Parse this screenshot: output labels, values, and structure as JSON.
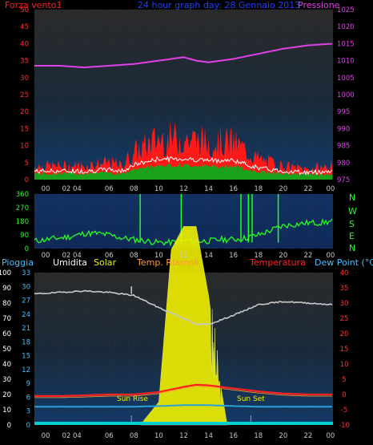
{
  "colors": {
    "wind_speed": "#ff1a1a",
    "wind_avg": "#ffffff",
    "wind_green": "#19a11c",
    "pressure": "#e040e8",
    "direction": "#22ff22",
    "humidity": "#c8c8c8",
    "solar": "#f0f000",
    "temp_internal": "#ff9933",
    "temperature": "#ff2020",
    "dewpoint": "#2aa0d8",
    "rain": "#00d0d0",
    "header_blue": "#1e40ff",
    "axis_cyan": "#40c0ff"
  },
  "header": {
    "left": "Forza vento1",
    "center": "24 hour graph day: 28 Gennaio 2013",
    "right": "Pressione"
  },
  "legend2": {
    "pioggia": "Pioggia",
    "umidita": "Umidita",
    "solar": "Solar",
    "temp_interna": "Temp. Riarnoli",
    "temperatura": "Temperatura",
    "dewpoint": "Dew Point (°C)"
  },
  "compass": [
    "N",
    "W",
    "S",
    "E",
    "N"
  ],
  "sun_labels": {
    "rise": "Sun Rise",
    "set": "Sun Set"
  },
  "chart_data": [
    {
      "type": "line",
      "title": "24 hour graph day: 28 Gennaio 2013",
      "x_ticks": [
        "00",
        "02",
        "04",
        "06",
        "08",
        "10",
        "12",
        "14",
        "16",
        "18",
        "20",
        "22",
        "00"
      ],
      "x_ticks_shown": [
        "00",
        "02 04",
        "06",
        "08",
        "10",
        "12",
        "14",
        "16",
        "18",
        "20",
        "22",
        "00"
      ],
      "y_left": {
        "label": "Forza vento1",
        "ticks": [
          0,
          5,
          10,
          15,
          20,
          25,
          30,
          35,
          40,
          45,
          50
        ],
        "range": [
          0,
          50
        ]
      },
      "y_right": {
        "label": "Pressione",
        "ticks": [
          975,
          980,
          985,
          990,
          995,
          1000,
          1005,
          1010,
          1015,
          1020,
          1025
        ],
        "range": [
          975,
          1025
        ]
      },
      "series": [
        {
          "name": "Forza vento1",
          "axis": "left",
          "x": [
            0,
            2,
            4,
            6,
            7,
            8,
            10,
            12,
            14,
            16,
            18,
            20,
            22,
            24
          ],
          "values": [
            4,
            4,
            4,
            5,
            4,
            8,
            12,
            12,
            11,
            11,
            6,
            4,
            3,
            4
          ]
        },
        {
          "name": "Pressione",
          "axis": "right",
          "x": [
            0,
            2,
            4,
            6,
            8,
            10,
            12,
            13,
            14,
            16,
            18,
            20,
            22,
            24
          ],
          "values": [
            1008.5,
            1008.5,
            1008,
            1008.5,
            1009,
            1010,
            1011,
            1010,
            1009.5,
            1010.5,
            1012,
            1013.5,
            1014.5,
            1015
          ]
        }
      ]
    },
    {
      "type": "line",
      "x_ticks": [
        "00",
        "02",
        "04",
        "06",
        "08",
        "10",
        "12",
        "14",
        "16",
        "18",
        "20",
        "22",
        "00"
      ],
      "y_left": {
        "ticks": [
          0,
          90,
          180,
          270,
          360
        ],
        "range": [
          0,
          360
        ]
      },
      "y_right_labels": [
        "N",
        "W",
        "S",
        "E",
        "N"
      ],
      "series": [
        {
          "name": "wind_direction",
          "x": [
            0,
            1,
            2,
            3,
            4,
            5,
            6,
            7,
            8,
            9,
            10,
            11,
            12,
            13,
            14,
            15,
            16,
            17,
            18,
            19,
            20,
            21,
            22,
            23,
            24
          ],
          "values": [
            50,
            60,
            70,
            80,
            100,
            100,
            90,
            70,
            60,
            50,
            40,
            40,
            50,
            50,
            50,
            60,
            60,
            70,
            90,
            120,
            150,
            160,
            170,
            170,
            180
          ]
        }
      ]
    },
    {
      "type": "area",
      "x_ticks": [
        "00",
        "02",
        "04",
        "06",
        "08",
        "10",
        "12",
        "14",
        "16",
        "18",
        "20",
        "22",
        "00"
      ],
      "y_left_outer": {
        "label": "Pioggia",
        "ticks": [
          0,
          10,
          20,
          30,
          40,
          50,
          60,
          70,
          80,
          90,
          100
        ],
        "range": [
          0,
          100
        ]
      },
      "y_left_inner": {
        "label": "Umidita",
        "ticks": [
          0,
          3,
          6,
          9,
          12,
          15,
          18,
          21,
          24,
          27,
          30,
          33
        ],
        "range": [
          0,
          33
        ]
      },
      "y_right": {
        "label": "Dew Point (°C)",
        "ticks": [
          -10,
          -5,
          0,
          5,
          10,
          15,
          20,
          25,
          30,
          35,
          40
        ],
        "range": [
          -10,
          40
        ]
      },
      "series": [
        {
          "name": "Umidita",
          "x": [
            0,
            2,
            4,
            6,
            8,
            10,
            12,
            13,
            14,
            16,
            18,
            20,
            22,
            24
          ],
          "values": [
            86,
            87,
            88,
            87,
            85,
            77,
            70,
            66,
            66,
            72,
            79,
            81,
            80,
            79
          ]
        },
        {
          "name": "Solar",
          "x": [
            8.5,
            10,
            11,
            12,
            13,
            14,
            15,
            15.5
          ],
          "values": [
            0,
            5,
            38,
            43,
            43,
            28,
            8,
            0
          ]
        },
        {
          "name": "Temperatura",
          "x": [
            0,
            2,
            4,
            6,
            8,
            10,
            12,
            13,
            14,
            16,
            18,
            20,
            22,
            24
          ],
          "values": [
            -0.5,
            -0.5,
            -0.3,
            0,
            0,
            0.8,
            2.5,
            3.2,
            3,
            2,
            1,
            0.3,
            0,
            0
          ]
        },
        {
          "name": "Dew Point",
          "x": [
            0,
            2,
            4,
            6,
            8,
            10,
            12,
            14,
            16,
            18,
            20,
            22,
            24
          ],
          "values": [
            -4,
            -4,
            -4,
            -4,
            -4,
            -3.8,
            -3.5,
            -3.5,
            -3.8,
            -4,
            -4,
            -4,
            -4
          ]
        },
        {
          "name": "Pioggia",
          "x": [
            0,
            24
          ],
          "values": [
            0,
            0
          ]
        }
      ]
    }
  ]
}
